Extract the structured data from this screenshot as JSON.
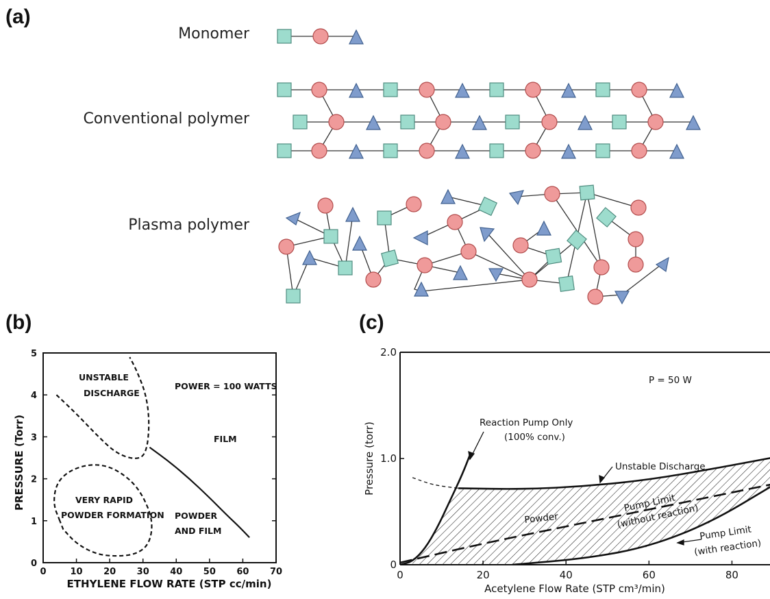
{
  "panels": {
    "a": {
      "label": "(a)"
    },
    "b": {
      "label": "(b)"
    },
    "c": {
      "label": "(c)"
    }
  },
  "rows": {
    "monomer": "Monomer",
    "conventional": "Conventional polymer",
    "plasma": "Plasma polymer"
  },
  "legend_colors": {
    "square": "#9ddccd",
    "circle": "#ef9a9a",
    "triangle": "#7f9ccc"
  },
  "chart_data": [
    {
      "type": "line",
      "ylabel": "PRESSURE (Torr)",
      "xlabel": "ETHYLENE FLOW RATE (STP cc/min)",
      "xlim": [
        0,
        70
      ],
      "ylim": [
        0,
        5
      ],
      "xticks": [
        "0",
        "10",
        "20",
        "30",
        "40",
        "50",
        "60",
        "70"
      ],
      "yticks": [
        "0",
        "1",
        "2",
        "3",
        "4",
        "5"
      ],
      "annotations": {
        "unstable": [
          "UNSTABLE",
          "DISCHARGE"
        ],
        "power": "POWER = 100 WATTS",
        "film": "FILM",
        "rapid": [
          "VERY RAPID",
          "POWDER FORMATION"
        ],
        "powder_film": [
          "POWDER",
          "AND FILM"
        ]
      },
      "series": [
        {
          "style": "dashed",
          "x": [
            4,
            10,
            16,
            22,
            28,
            31,
            32,
            31,
            28,
            26
          ],
          "y": [
            4.0,
            3.55,
            3.05,
            2.6,
            2.45,
            2.6,
            3.3,
            4.0,
            4.6,
            4.9
          ]
        },
        {
          "style": "dashed",
          "x": [
            5,
            3,
            4,
            8,
            14,
            20,
            26,
            30,
            33,
            32,
            28,
            22,
            16,
            10,
            6
          ],
          "y": [
            1.0,
            1.4,
            1.9,
            2.2,
            2.35,
            2.3,
            2.0,
            1.6,
            1.0,
            0.45,
            0.2,
            0.15,
            0.2,
            0.45,
            0.8
          ]
        },
        {
          "style": "solid",
          "x": [
            32,
            38,
            44,
            50,
            55,
            59,
            62
          ],
          "y": [
            2.75,
            2.4,
            2.0,
            1.55,
            1.15,
            0.85,
            0.6
          ]
        }
      ]
    },
    {
      "type": "line",
      "ylabel": "Pressure (torr)",
      "xlabel": "Acetylene Flow Rate (STP cm³/min)",
      "xlim": [
        0,
        90
      ],
      "ylim": [
        0,
        2.0
      ],
      "xticks": [
        "0",
        "20",
        "40",
        "60",
        "80"
      ],
      "yticks": [
        "0",
        "1.0",
        "2.0"
      ],
      "annotations": {
        "power": "P = 50 W",
        "reaction": [
          "Reaction Pump Only",
          "(100% conv.)"
        ],
        "unstable": "Unstable Discharge",
        "powder": "Powder",
        "pump_without": [
          "Pump Limit",
          "(without reaction)"
        ],
        "pump_with": [
          "Pump Limit",
          "(with reaction)"
        ]
      },
      "series": [
        {
          "name": "Reaction Pump Only",
          "style": "solid",
          "x": [
            0,
            3,
            6,
            9,
            12,
            15,
            17
          ],
          "y": [
            0.0,
            0.03,
            0.15,
            0.35,
            0.6,
            0.85,
            1.05
          ]
        },
        {
          "name": "Unstable Discharge",
          "style": "solid",
          "x": [
            14,
            30,
            45,
            60,
            75,
            90
          ],
          "y": [
            0.72,
            0.71,
            0.74,
            0.8,
            0.9,
            1.01
          ]
        },
        {
          "name": "Pump Limit (without reaction)",
          "style": "dashed",
          "x": [
            0,
            20,
            40,
            60,
            80,
            90
          ],
          "y": [
            0.02,
            0.2,
            0.36,
            0.52,
            0.68,
            0.76
          ]
        },
        {
          "name": "Pump Limit (with reaction)",
          "style": "solid",
          "x": [
            27,
            45,
            60,
            75,
            90
          ],
          "y": [
            0.0,
            0.06,
            0.17,
            0.4,
            0.75
          ]
        },
        {
          "style": "dashed-thin",
          "x": [
            3,
            8,
            14
          ],
          "y": [
            0.82,
            0.75,
            0.72
          ]
        }
      ]
    }
  ]
}
